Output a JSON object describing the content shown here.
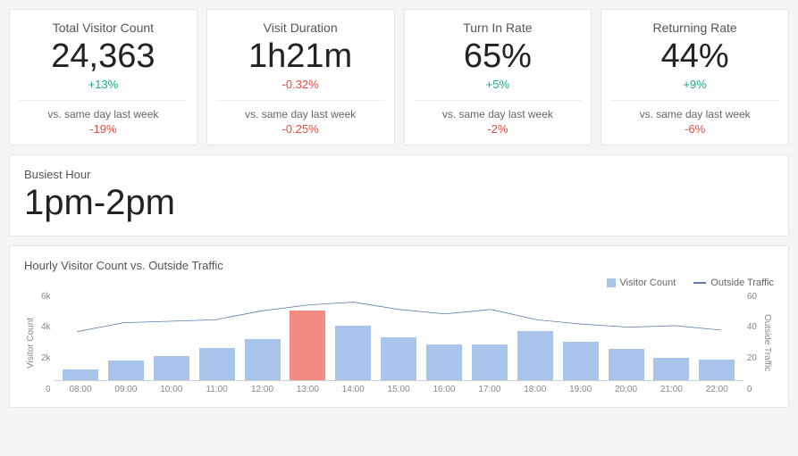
{
  "colors": {
    "positive": "#1aab8a",
    "negative": "#e74c3c",
    "bar_default": "#a9c4eb",
    "bar_highlight": "#f28b82",
    "line": "#5b7db1",
    "card_bg": "#ffffff",
    "page_bg": "#f5f5f5",
    "border": "#e5e5e5",
    "text_muted": "#666666"
  },
  "cards": [
    {
      "title": "Total Visitor Count",
      "value": "24,363",
      "delta": "+13%",
      "delta_sign": "pos",
      "sub_label": "vs. same day last week",
      "sub_delta": "-19%",
      "sub_sign": "neg"
    },
    {
      "title": "Visit Duration",
      "value": "1h21m",
      "delta": "-0.32%",
      "delta_sign": "neg",
      "sub_label": "vs. same day last week",
      "sub_delta": "-0.25%",
      "sub_sign": "neg"
    },
    {
      "title": "Turn In Rate",
      "value": "65%",
      "delta": "+5%",
      "delta_sign": "pos",
      "sub_label": "vs. same day last week",
      "sub_delta": "-2%",
      "sub_sign": "neg"
    },
    {
      "title": "Returning Rate",
      "value": "44%",
      "delta": "+9%",
      "delta_sign": "pos",
      "sub_label": "vs. same day last week",
      "sub_delta": "-6%",
      "sub_sign": "neg"
    }
  ],
  "busiest": {
    "title": "Busiest Hour",
    "value": "1pm-2pm"
  },
  "chart": {
    "title": "Hourly Visitor Count vs. Outside Traffic",
    "type": "bar+line",
    "legend": [
      {
        "label": "Visitor Count",
        "kind": "bar",
        "color": "#a9c4eb"
      },
      {
        "label": "Outside Traffic",
        "kind": "line",
        "color": "#5b7db1"
      }
    ],
    "x_labels": [
      "08:00",
      "09:00",
      "10:00",
      "11:00",
      "12:00",
      "13:00",
      "14:00",
      "15:00",
      "16:00",
      "17:00",
      "18:00",
      "19:00",
      "20:00",
      "21:00",
      "22:00"
    ],
    "bars": [
      700,
      1300,
      1600,
      2200,
      2800,
      4700,
      3700,
      2900,
      2400,
      2400,
      3300,
      2600,
      2100,
      1500,
      1400
    ],
    "bar_highlight_index": 5,
    "line": [
      33,
      39,
      40,
      41,
      47,
      51,
      53,
      48,
      45,
      48,
      41,
      38,
      36,
      37,
      34
    ],
    "y_left": {
      "label": "Visitor Count",
      "min": 0,
      "max": 6000,
      "ticks": [
        "6k",
        "4k",
        "2k",
        "0"
      ]
    },
    "y_right": {
      "label": "Outside Traffic",
      "min": 0,
      "max": 60,
      "ticks": [
        "60",
        "40",
        "20",
        "0"
      ]
    },
    "background_color": "#ffffff",
    "bar_width": 0.72
  }
}
